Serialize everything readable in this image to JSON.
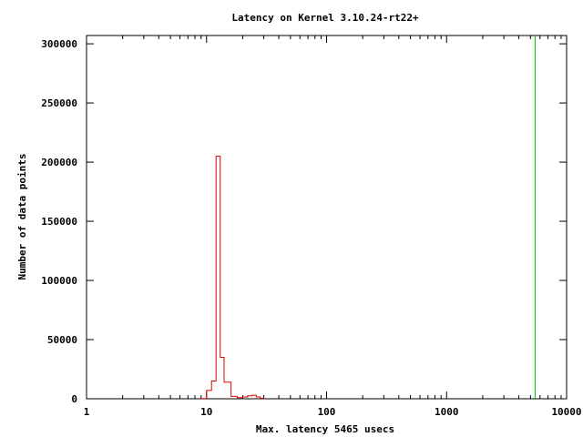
{
  "chart_data": {
    "type": "line",
    "title": "Latency on Kernel 3.10.24-rt22+",
    "xlabel": "Max. latency 5465 usecs",
    "ylabel": "Number of data points",
    "x_scale": "log",
    "xlim": [
      1,
      10000
    ],
    "ylim": [
      0,
      307000
    ],
    "x_ticks": [
      1,
      10,
      100,
      1000,
      10000
    ],
    "x_tick_labels": [
      "1",
      "10",
      "100",
      "1000",
      "10000"
    ],
    "y_ticks": [
      0,
      50000,
      100000,
      150000,
      200000,
      250000,
      300000
    ],
    "y_tick_labels": [
      "0",
      "50000",
      "100000",
      "150000",
      "200000",
      "250000",
      "300000"
    ],
    "grid": false,
    "series": [
      {
        "color": "#dd0000",
        "style": "steps",
        "x": [
          9,
          10,
          11,
          12,
          13,
          14,
          16,
          18,
          20,
          22,
          24,
          26,
          28
        ],
        "values": [
          200,
          7000,
          15000,
          205000,
          35000,
          14000,
          2000,
          1000,
          1500,
          2500,
          3000,
          1500,
          500
        ]
      },
      {
        "color": "#00bb00",
        "style": "vline",
        "x": [
          5465
        ],
        "values": [
          307000
        ]
      }
    ]
  }
}
